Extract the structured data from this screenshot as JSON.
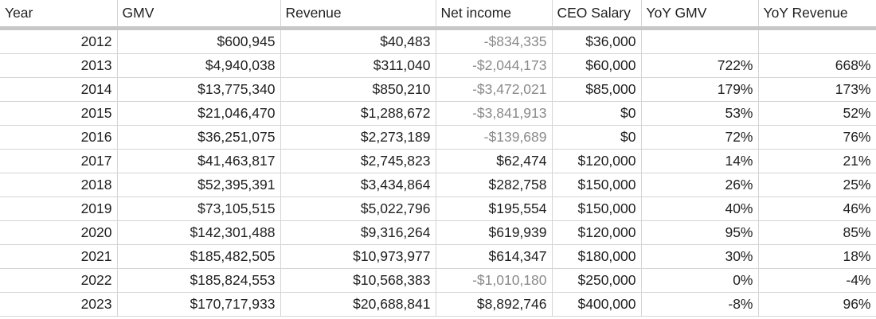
{
  "headers": [
    "Year",
    "GMV",
    "Revenue",
    "Net income",
    "CEO Salary",
    "YoY GMV",
    "YoY Revenue"
  ],
  "rows": [
    [
      "2012",
      "$600,945",
      "$40,483",
      "-$834,335",
      "$36,000",
      "",
      ""
    ],
    [
      "2013",
      "$4,940,038",
      "$311,040",
      "-$2,044,173",
      "$60,000",
      "722%",
      "668%"
    ],
    [
      "2014",
      "$13,775,340",
      "$850,210",
      "-$3,472,021",
      "$85,000",
      "179%",
      "173%"
    ],
    [
      "2015",
      "$21,046,470",
      "$1,288,672",
      "-$3,841,913",
      "$0",
      "53%",
      "52%"
    ],
    [
      "2016",
      "$36,251,075",
      "$2,273,189",
      "-$139,689",
      "$0",
      "72%",
      "76%"
    ],
    [
      "2017",
      "$41,463,817",
      "$2,745,823",
      "$62,474",
      "$120,000",
      "14%",
      "21%"
    ],
    [
      "2018",
      "$52,395,391",
      "$3,434,864",
      "$282,758",
      "$150,000",
      "26%",
      "25%"
    ],
    [
      "2019",
      "$73,105,515",
      "$5,022,796",
      "$195,554",
      "$150,000",
      "40%",
      "46%"
    ],
    [
      "2020",
      "$142,301,488",
      "$9,316,264",
      "$619,939",
      "$120,000",
      "95%",
      "85%"
    ],
    [
      "2021",
      "$185,482,505",
      "$10,973,977",
      "$614,347",
      "$180,000",
      "30%",
      "18%"
    ],
    [
      "2022",
      "$185,824,553",
      "$10,568,383",
      "-$1,010,180",
      "$250,000",
      "0%",
      "-4%"
    ],
    [
      "2023",
      "$170,717,933",
      "$20,688,841",
      "$8,892,746",
      "$400,000",
      "-8%",
      "96%"
    ]
  ],
  "colors": {
    "negative_text": "#8a8a8a",
    "grid": "#d4d4d4",
    "header_rule": "#c7c7c7"
  }
}
